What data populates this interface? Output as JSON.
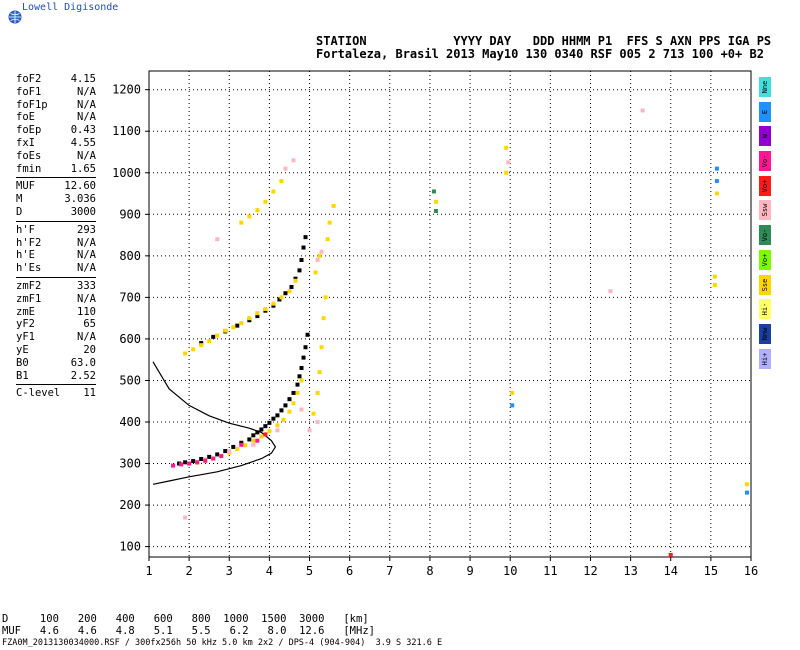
{
  "logo": {
    "text": "Lowell Digisonde"
  },
  "header": {
    "line1": "STATION            YYYY DAY   DDD HHMM P1  FFS S AXN PPS IGA PS",
    "line2": "Fortaleza, Brasil 2013 May10 130 0340 RSF 005 2 713 100 +0+ B2"
  },
  "params": [
    {
      "name": "foF2",
      "value": "4.15"
    },
    {
      "name": "foF1",
      "value": "N/A"
    },
    {
      "name": "foF1p",
      "value": "N/A"
    },
    {
      "name": "foE",
      "value": "N/A"
    },
    {
      "name": "foEp",
      "value": "0.43"
    },
    {
      "name": "fxI",
      "value": "4.55"
    },
    {
      "name": "foEs",
      "value": "N/A"
    },
    {
      "name": "fmin",
      "value": "1.65"
    },
    {
      "sep": true
    },
    {
      "name": "MUF",
      "value": "12.60"
    },
    {
      "name": "M",
      "value": "3.036"
    },
    {
      "name": "D",
      "value": "3000"
    },
    {
      "sep": true
    },
    {
      "name": "h'F",
      "value": "293"
    },
    {
      "name": "h'F2",
      "value": "N/A"
    },
    {
      "name": "h'E",
      "value": "N/A"
    },
    {
      "name": "h'Es",
      "value": "N/A"
    },
    {
      "sep": true
    },
    {
      "name": "zmF2",
      "value": "333"
    },
    {
      "name": "zmF1",
      "value": "N/A"
    },
    {
      "name": "zmE",
      "value": "110"
    },
    {
      "name": "yF2",
      "value": "65"
    },
    {
      "name": "yF1",
      "value": "N/A"
    },
    {
      "name": "yE",
      "value": "20"
    },
    {
      "name": "B0",
      "value": "63.0"
    },
    {
      "name": "B1",
      "value": "2.52"
    },
    {
      "sep": true
    },
    {
      "name": "C-level",
      "value": "11"
    }
  ],
  "legend": [
    {
      "label": "Nne",
      "color": "#40e0e0"
    },
    {
      "label": "E",
      "color": "#1e90ff"
    },
    {
      "label": "W",
      "color": "#9400d3"
    },
    {
      "label": "Vo-",
      "color": "#ff1493"
    },
    {
      "label": "Vo+",
      "color": "#ff1a1a"
    },
    {
      "label": "Ssw",
      "color": "#ffb6c1"
    },
    {
      "label": "Vo-",
      "color": "#2e8b57"
    },
    {
      "label": "Vo+",
      "color": "#7cfc00"
    },
    {
      "label": "Sse",
      "color": "#ffd700"
    },
    {
      "label": "Hi-",
      "color": "#ffff66"
    },
    {
      "label": "Nnw",
      "color": "#1a3fa0"
    },
    {
      "label": "Hi+",
      "color": "#b0b0ff"
    }
  ],
  "muf_table": {
    "line1": "D     100   200   400   600   800  1000  1500  3000   [km]",
    "line2": "MUF   4.6   4.6   4.8   5.1   5.5   6.2   8.0  12.6   [MHz]"
  },
  "footer": "FZA0M_2013130034000.RSF / 300fx256h 50 kHz 5.0 km 2x2 / DPS-4 (904-904)  3.9 S 321.6 E",
  "chart_data": {
    "type": "scatter",
    "title": "",
    "xlabel": "",
    "ylabel": "",
    "xlim": [
      1,
      16
    ],
    "ylim": [
      75,
      1245
    ],
    "xticks": [
      "1",
      "2",
      "3",
      "4",
      "5",
      "6",
      "7",
      "8",
      "9",
      "10",
      "11",
      "12",
      "13",
      "14",
      "15",
      "16"
    ],
    "yticks": [
      "100",
      "200",
      "300",
      "400",
      "500",
      "600",
      "700",
      "800",
      "900",
      "1000",
      "1100",
      "1200"
    ],
    "grid": true,
    "series": [
      {
        "color": "#000000",
        "points": [
          [
            1.75,
            300
          ],
          [
            1.9,
            303
          ],
          [
            2.1,
            306
          ],
          [
            2.3,
            311
          ],
          [
            2.5,
            316
          ],
          [
            2.7,
            322
          ],
          [
            2.9,
            330
          ],
          [
            3.1,
            340
          ],
          [
            3.3,
            350
          ],
          [
            3.5,
            358
          ],
          [
            3.6,
            368
          ],
          [
            3.7,
            375
          ],
          [
            3.8,
            382
          ],
          [
            3.9,
            390
          ],
          [
            4.0,
            398
          ],
          [
            4.1,
            408
          ],
          [
            4.2,
            416
          ],
          [
            4.3,
            428
          ],
          [
            4.4,
            440
          ],
          [
            4.5,
            455
          ],
          [
            4.6,
            470
          ],
          [
            4.7,
            490
          ],
          [
            4.75,
            510
          ],
          [
            4.8,
            530
          ],
          [
            4.85,
            555
          ],
          [
            4.9,
            580
          ],
          [
            4.95,
            610
          ],
          [
            2.3,
            590
          ],
          [
            2.6,
            605
          ],
          [
            2.9,
            618
          ],
          [
            3.2,
            632
          ],
          [
            3.5,
            645
          ],
          [
            3.7,
            655
          ],
          [
            3.9,
            668
          ],
          [
            4.1,
            680
          ],
          [
            4.25,
            695
          ],
          [
            4.4,
            710
          ],
          [
            4.55,
            725
          ],
          [
            4.65,
            745
          ],
          [
            4.75,
            765
          ],
          [
            4.8,
            790
          ],
          [
            4.85,
            820
          ],
          [
            4.9,
            845
          ]
        ]
      },
      {
        "color": "#ffd700",
        "points": [
          [
            2.0,
            300
          ],
          [
            2.2,
            302
          ],
          [
            2.4,
            306
          ],
          [
            2.6,
            312
          ],
          [
            2.8,
            318
          ],
          [
            3.0,
            326
          ],
          [
            3.2,
            335
          ],
          [
            3.4,
            344
          ],
          [
            3.6,
            355
          ],
          [
            3.8,
            365
          ],
          [
            4.0,
            378
          ],
          [
            4.2,
            392
          ],
          [
            4.35,
            405
          ],
          [
            4.5,
            425
          ],
          [
            4.6,
            445
          ],
          [
            4.7,
            470
          ],
          [
            4.8,
            500
          ],
          [
            5.1,
            420
          ],
          [
            5.2,
            470
          ],
          [
            5.25,
            520
          ],
          [
            5.3,
            580
          ],
          [
            5.35,
            650
          ],
          [
            5.4,
            700
          ],
          [
            5.15,
            760
          ],
          [
            5.25,
            800
          ],
          [
            5.45,
            840
          ],
          [
            5.5,
            880
          ],
          [
            5.6,
            920
          ],
          [
            1.9,
            565
          ],
          [
            2.1,
            575
          ],
          [
            2.3,
            585
          ],
          [
            2.5,
            595
          ],
          [
            2.7,
            608
          ],
          [
            2.9,
            620
          ],
          [
            3.1,
            628
          ],
          [
            3.3,
            638
          ],
          [
            3.5,
            650
          ],
          [
            3.7,
            662
          ],
          [
            3.9,
            672
          ],
          [
            4.1,
            685
          ],
          [
            4.3,
            700
          ],
          [
            4.5,
            715
          ],
          [
            4.65,
            740
          ],
          [
            3.3,
            880
          ],
          [
            3.5,
            895
          ],
          [
            3.7,
            910
          ],
          [
            3.9,
            930
          ],
          [
            4.1,
            955
          ],
          [
            4.3,
            980
          ],
          [
            9.9,
            1000
          ],
          [
            9.9,
            1060
          ],
          [
            10.05,
            470
          ],
          [
            15.15,
            950
          ],
          [
            15.1,
            730
          ],
          [
            15.1,
            750
          ],
          [
            15.9,
            250
          ],
          [
            8.15,
            930
          ]
        ]
      },
      {
        "color": "#ffb6c1",
        "points": [
          [
            2.4,
            310
          ],
          [
            3.0,
            330
          ],
          [
            3.6,
            345
          ],
          [
            4.2,
            380
          ],
          [
            4.8,
            430
          ],
          [
            5.0,
            380
          ],
          [
            5.2,
            400
          ],
          [
            5.2,
            790
          ],
          [
            5.3,
            810
          ],
          [
            4.6,
            1030
          ],
          [
            4.4,
            1010
          ],
          [
            2.7,
            840
          ],
          [
            13.3,
            1150
          ],
          [
            12.5,
            715
          ],
          [
            9.95,
            1025
          ],
          [
            1.9,
            170
          ]
        ]
      },
      {
        "color": "#ff1493",
        "points": [
          [
            1.6,
            295
          ],
          [
            1.8,
            298
          ],
          [
            2.0,
            300
          ],
          [
            2.2,
            303
          ],
          [
            2.4,
            307
          ],
          [
            2.6,
            312
          ],
          [
            2.8,
            318
          ],
          [
            3.3,
            345
          ],
          [
            3.7,
            355
          ]
        ]
      },
      {
        "color": "#ff1a1a",
        "points": [
          [
            14.0,
            80
          ],
          [
            3.9,
            370
          ]
        ]
      },
      {
        "color": "#1e90ff",
        "points": [
          [
            15.15,
            1010
          ],
          [
            15.15,
            980
          ],
          [
            15.9,
            230
          ],
          [
            10.05,
            440
          ]
        ]
      },
      {
        "color": "#2e8b57",
        "points": [
          [
            8.1,
            955
          ],
          [
            8.15,
            908
          ]
        ]
      }
    ],
    "lines": [
      {
        "color": "#000000",
        "points": [
          [
            1.1,
            545
          ],
          [
            1.5,
            480
          ],
          [
            2.0,
            440
          ],
          [
            2.5,
            415
          ],
          [
            3.0,
            397
          ],
          [
            3.5,
            385
          ],
          [
            3.8,
            375
          ],
          [
            4.05,
            355
          ],
          [
            4.15,
            340
          ],
          [
            4.05,
            325
          ],
          [
            3.8,
            312
          ],
          [
            3.3,
            295
          ],
          [
            2.7,
            280
          ],
          [
            2.0,
            268
          ],
          [
            1.5,
            258
          ],
          [
            1.1,
            250
          ]
        ]
      }
    ]
  }
}
